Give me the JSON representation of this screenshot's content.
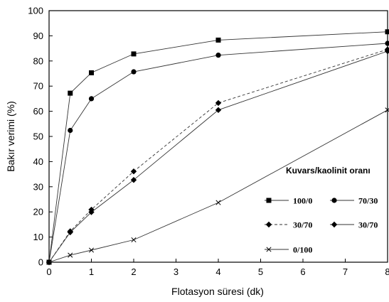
{
  "chart_data": {
    "type": "line",
    "xlabel": "Flotasyon süresi (dk)",
    "ylabel": "Bakır verimi (%)",
    "xlim": [
      0,
      8
    ],
    "ylim": [
      0,
      100
    ],
    "xticks": [
      "0",
      "1",
      "2",
      "3",
      "4",
      "5",
      "6",
      "7",
      "8"
    ],
    "yticks": [
      "0",
      "10",
      "20",
      "30",
      "40",
      "50",
      "60",
      "70",
      "80",
      "90",
      "100"
    ],
    "grid": "none",
    "legend_title": "Kuvars/kaolinit oranı",
    "legend_position": "bottom-right",
    "series": [
      {
        "name": "100/0",
        "marker": "square",
        "line": "solid",
        "x": [
          0,
          0.5,
          1,
          2,
          4,
          8
        ],
        "y": [
          0,
          67.2,
          75.3,
          82.8,
          88.3,
          91.6
        ]
      },
      {
        "name": "70/30",
        "marker": "circle",
        "line": "solid",
        "x": [
          0,
          0.5,
          1,
          2,
          4,
          8
        ],
        "y": [
          0,
          52.4,
          65.0,
          75.7,
          82.3,
          87.0
        ]
      },
      {
        "name": "30/70",
        "marker": "diamond",
        "line": "dashed",
        "x": [
          0,
          0.5,
          1,
          2,
          4,
          8
        ],
        "y": [
          0,
          12.3,
          20.9,
          36.1,
          63.3,
          84.6
        ]
      },
      {
        "name": "30/70",
        "marker": "diamond",
        "line": "solid",
        "x": [
          0,
          0.5,
          1,
          2,
          4,
          8
        ],
        "y": [
          0,
          11.9,
          19.9,
          32.7,
          60.5,
          83.9
        ]
      },
      {
        "name": "0/100",
        "marker": "x",
        "line": "solid",
        "x": [
          0,
          0.5,
          1,
          2,
          4,
          8
        ],
        "y": [
          0,
          2.8,
          4.8,
          8.9,
          23.7,
          60.5
        ]
      }
    ]
  }
}
